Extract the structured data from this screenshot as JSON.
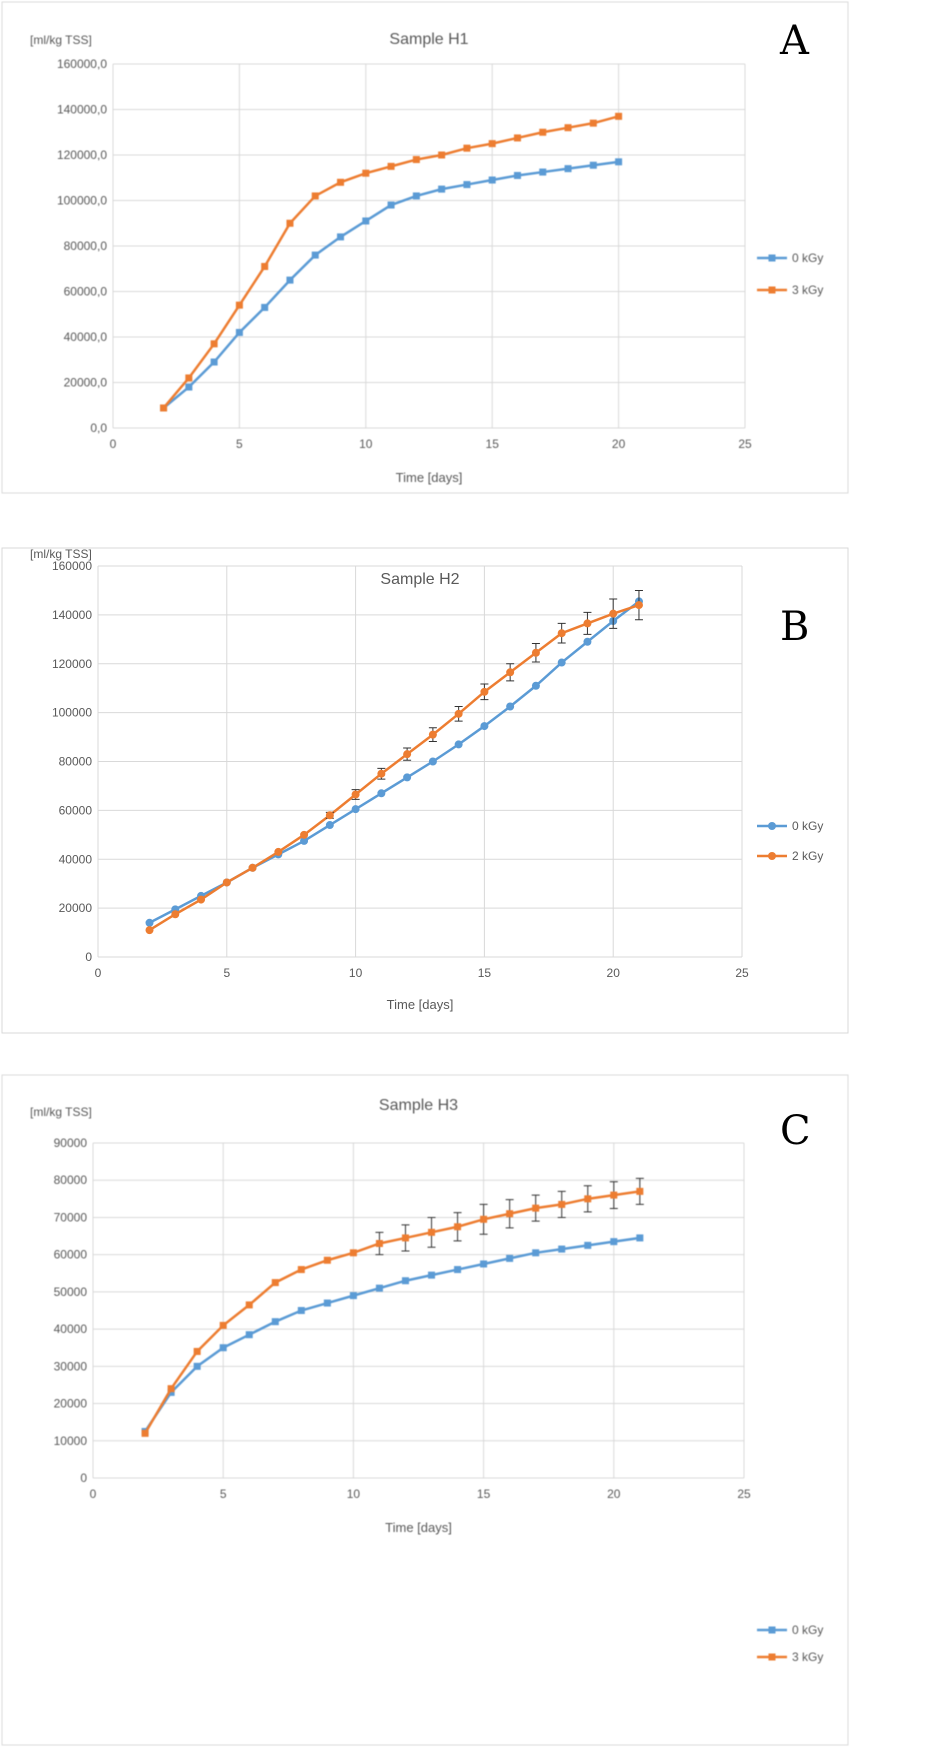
{
  "colors": {
    "series0": "#5B9BD5",
    "series1": "#ED7D31",
    "grid": "#d9d9d9",
    "text": "#595959"
  },
  "chart_data": [
    {
      "panel": "A",
      "type": "line",
      "title": "Sample H1",
      "ylabel": "[ml/kg TSS]",
      "xlabel": "Time [days]",
      "xlim": [
        0,
        25
      ],
      "xticks": [
        0,
        5,
        10,
        15,
        20,
        25
      ],
      "ylim": [
        0,
        160000
      ],
      "yticks": [
        "0,0",
        "20000,0",
        "40000,0",
        "60000,0",
        "80000,0",
        "100000,0",
        "120000,0",
        "140000,0",
        "160000,0"
      ],
      "grid": true,
      "legend": "right",
      "marker": "square",
      "x": [
        2,
        3,
        4,
        5,
        6,
        7,
        8,
        9,
        10,
        11,
        12,
        13,
        14,
        15,
        16,
        17,
        18,
        19,
        20
      ],
      "series": [
        {
          "name": "0 kGy",
          "values": [
            8800,
            18000,
            29000,
            42000,
            53000,
            65000,
            76000,
            84000,
            91000,
            98000,
            102000,
            105000,
            107000,
            109000,
            111000,
            112500,
            114000,
            115500,
            117000
          ]
        },
        {
          "name": "3 kGy",
          "values": [
            8800,
            22000,
            37000,
            54000,
            71000,
            90000,
            102000,
            108000,
            112000,
            115000,
            118000,
            120000,
            123000,
            125000,
            127500,
            130000,
            132000,
            134000,
            137000
          ]
        }
      ]
    },
    {
      "panel": "B",
      "type": "line",
      "title": "Sample H2",
      "ylabel": "[ml/kg TSS]",
      "xlabel": "Time [days]",
      "xlim": [
        0,
        25
      ],
      "xticks": [
        0,
        5,
        10,
        15,
        20,
        25
      ],
      "ylim": [
        0,
        160000
      ],
      "yticks": [
        "0",
        "20000",
        "40000",
        "60000",
        "80000",
        "100000",
        "120000",
        "140000",
        "160000"
      ],
      "grid": true,
      "legend": "right",
      "marker": "circle",
      "x": [
        2,
        3,
        4,
        5,
        6,
        7,
        8,
        9,
        10,
        11,
        12,
        13,
        14,
        15,
        16,
        17,
        18,
        19,
        20,
        21
      ],
      "series": [
        {
          "name": "0 kGy",
          "values": [
            14000,
            19500,
            25000,
            30500,
            36500,
            42000,
            47500,
            54000,
            60500,
            67000,
            73500,
            80000,
            87000,
            94500,
            102500,
            111000,
            120500,
            129000,
            137500,
            145500
          ]
        },
        {
          "name": "2 kGy",
          "values": [
            11000,
            17500,
            23500,
            30500,
            36500,
            43000,
            50000,
            58000,
            66500,
            75000,
            83000,
            91000,
            99500,
            108500,
            116500,
            124500,
            132500,
            136500,
            140500,
            144000
          ],
          "errors": [
            0,
            0,
            0,
            0,
            0,
            0,
            0,
            1200,
            2000,
            2200,
            2500,
            2800,
            3000,
            3200,
            3500,
            3800,
            4000,
            4500,
            6000,
            6000
          ]
        }
      ]
    },
    {
      "panel": "C",
      "type": "line",
      "title": "Sample H3",
      "ylabel": "[ml/kg TSS]",
      "xlabel": "Time [days]",
      "xlim": [
        0,
        25
      ],
      "xticks": [
        0,
        5,
        10,
        15,
        20,
        25
      ],
      "ylim": [
        0,
        90000
      ],
      "yticks": [
        "0",
        "10000",
        "20000",
        "30000",
        "40000",
        "50000",
        "60000",
        "70000",
        "80000",
        "90000"
      ],
      "grid": true,
      "legend": "right",
      "marker": "square",
      "x": [
        2,
        3,
        4,
        5,
        6,
        7,
        8,
        9,
        10,
        11,
        12,
        13,
        14,
        15,
        16,
        17,
        18,
        19,
        20,
        21
      ],
      "series": [
        {
          "name": "0 kGy",
          "values": [
            12500,
            23000,
            30000,
            35000,
            38500,
            42000,
            45000,
            47000,
            49000,
            51000,
            53000,
            54500,
            56000,
            57500,
            59000,
            60500,
            61500,
            62500,
            63500,
            64500
          ]
        },
        {
          "name": "3 kGy",
          "values": [
            12000,
            24000,
            34000,
            41000,
            46500,
            52500,
            56000,
            58500,
            60500,
            63000,
            64500,
            66000,
            67500,
            69500,
            71000,
            72500,
            73500,
            75000,
            76000,
            77000
          ],
          "errors": [
            0,
            0,
            0,
            0,
            0,
            0,
            0,
            0,
            0,
            3000,
            3500,
            4000,
            3800,
            4000,
            3800,
            3500,
            3500,
            3500,
            3600,
            3500
          ]
        }
      ]
    }
  ]
}
